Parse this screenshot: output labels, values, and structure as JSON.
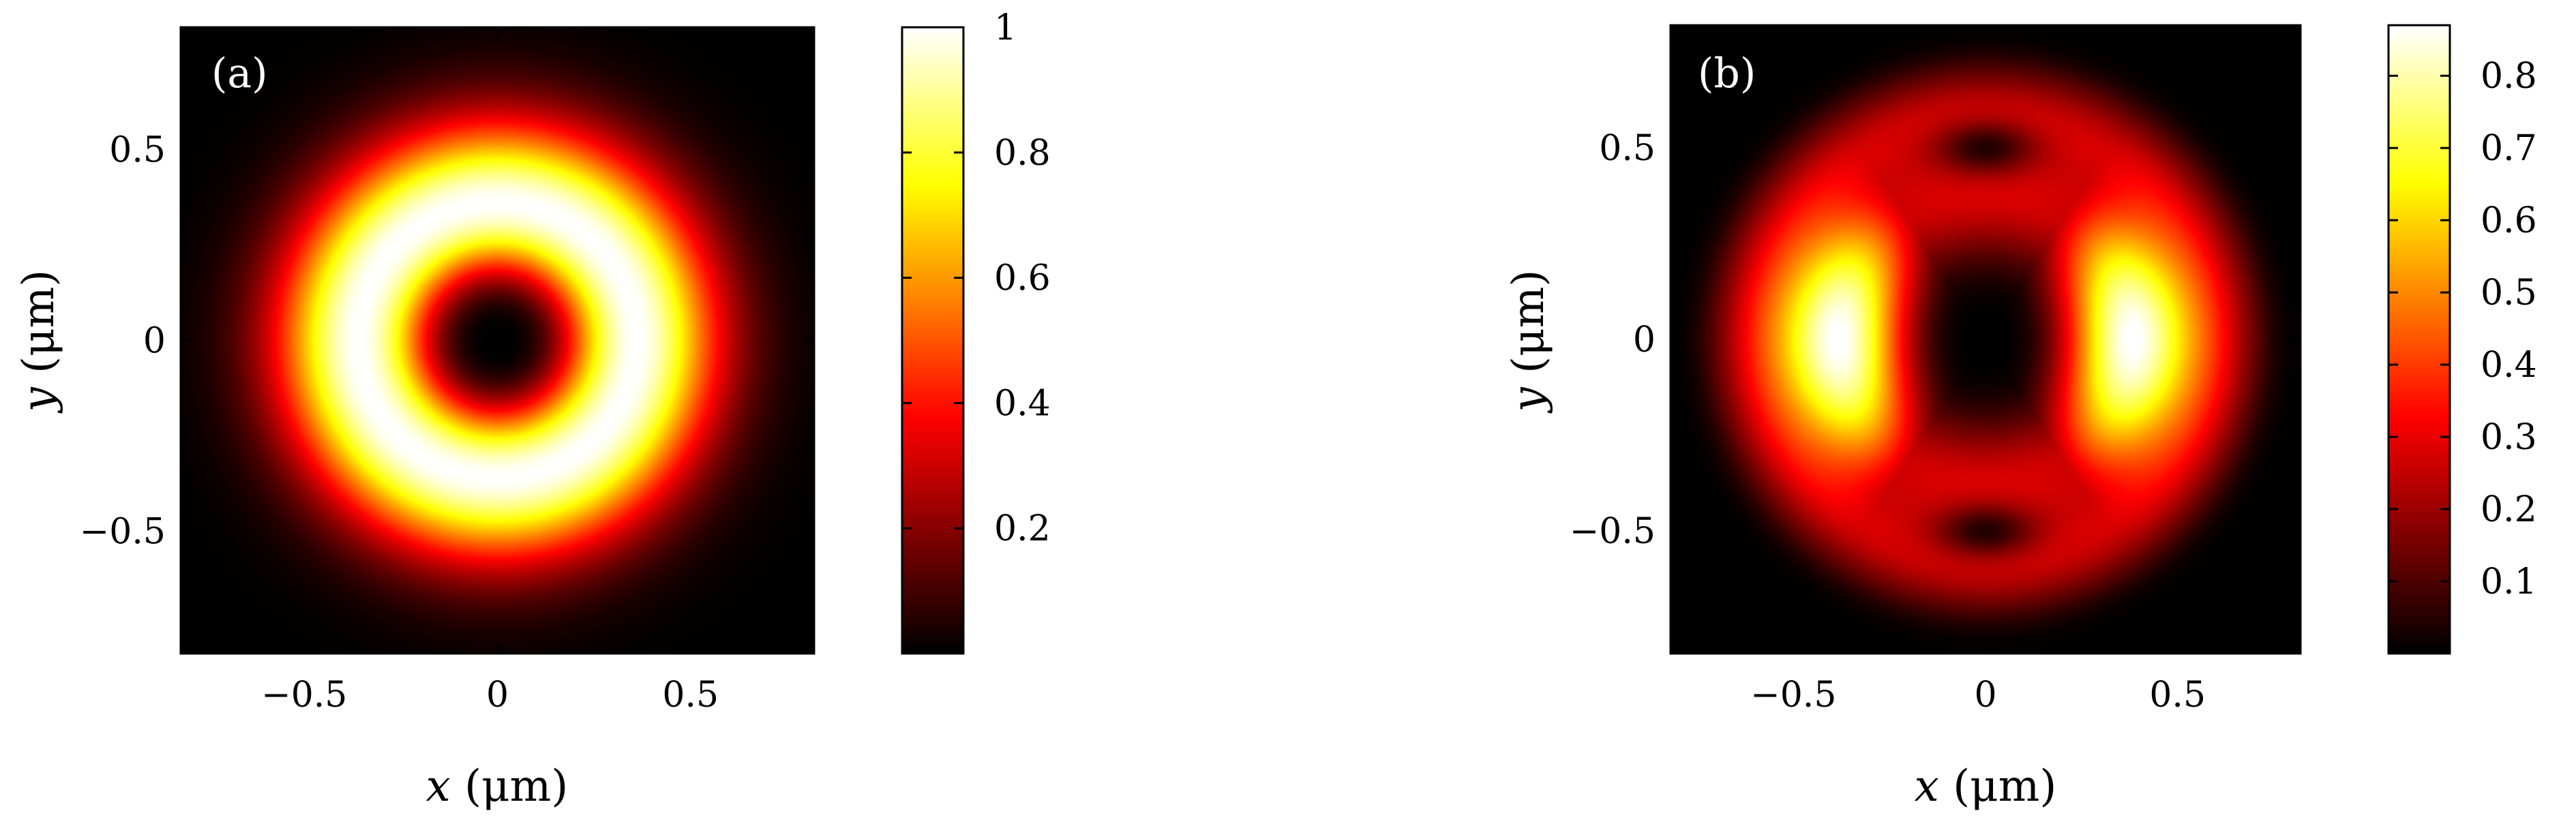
{
  "chart_data": [
    {
      "type": "heatmap",
      "panel_label": "(a)",
      "colormap": "hot",
      "xlabel": {
        "var": "x",
        "unit": "(μm)"
      },
      "ylabel": {
        "var": "y",
        "unit": "(μm)"
      },
      "xlim": [
        -0.82,
        0.82
      ],
      "ylim": [
        -0.82,
        0.82
      ],
      "xticks": [
        {
          "v": -0.5,
          "label": "−0.5"
        },
        {
          "v": 0,
          "label": "0"
        },
        {
          "v": 0.5,
          "label": "0.5"
        }
      ],
      "yticks": [
        {
          "v": 0.5,
          "label": "0.5"
        },
        {
          "v": 0,
          "label": "0"
        },
        {
          "v": -0.5,
          "label": "−0.5"
        }
      ],
      "colorbar": {
        "range": [
          0,
          1
        ],
        "ticks": [
          {
            "v": 0.2,
            "label": "0.2"
          },
          {
            "v": 0.4,
            "label": "0.4"
          },
          {
            "v": 0.6,
            "label": "0.6"
          },
          {
            "v": 0.8,
            "label": "0.8"
          },
          {
            "v": 1.0,
            "label": "1"
          }
        ]
      },
      "field": {
        "model": "ring",
        "ring_radius_um": 0.36,
        "core_radius_um": 0.14,
        "peak": 1.0
      }
    },
    {
      "type": "heatmap",
      "panel_label": "(b)",
      "colormap": "hot",
      "xlabel": {
        "var": "x",
        "unit": "(μm)"
      },
      "ylabel": {
        "var": "y",
        "unit": "(μm)"
      },
      "xlim": [
        -0.82,
        0.82
      ],
      "ylim": [
        -0.82,
        0.82
      ],
      "xticks": [
        {
          "v": -0.5,
          "label": "−0.5"
        },
        {
          "v": 0,
          "label": "0"
        },
        {
          "v": 0.5,
          "label": "0.5"
        }
      ],
      "yticks": [
        {
          "v": 0.5,
          "label": "0.5"
        },
        {
          "v": 0,
          "label": "0"
        },
        {
          "v": -0.5,
          "label": "−0.5"
        }
      ],
      "colorbar": {
        "range": [
          0,
          0.87
        ],
        "ticks": [
          {
            "v": 0.1,
            "label": "0.1"
          },
          {
            "v": 0.2,
            "label": "0.2"
          },
          {
            "v": 0.3,
            "label": "0.3"
          },
          {
            "v": 0.4,
            "label": "0.4"
          },
          {
            "v": 0.5,
            "label": "0.5"
          },
          {
            "v": 0.6,
            "label": "0.6"
          },
          {
            "v": 0.7,
            "label": "0.7"
          },
          {
            "v": 0.8,
            "label": "0.8"
          }
        ]
      },
      "field": {
        "model": "split-ring",
        "lobe_x_um": 0.38,
        "lobe_peak": 0.87,
        "ring_level": 0.28,
        "outer_ring_radius_um": 0.6,
        "dark_spots_y_um": [
          0.5,
          -0.5
        ],
        "peak": 0.87
      }
    }
  ]
}
